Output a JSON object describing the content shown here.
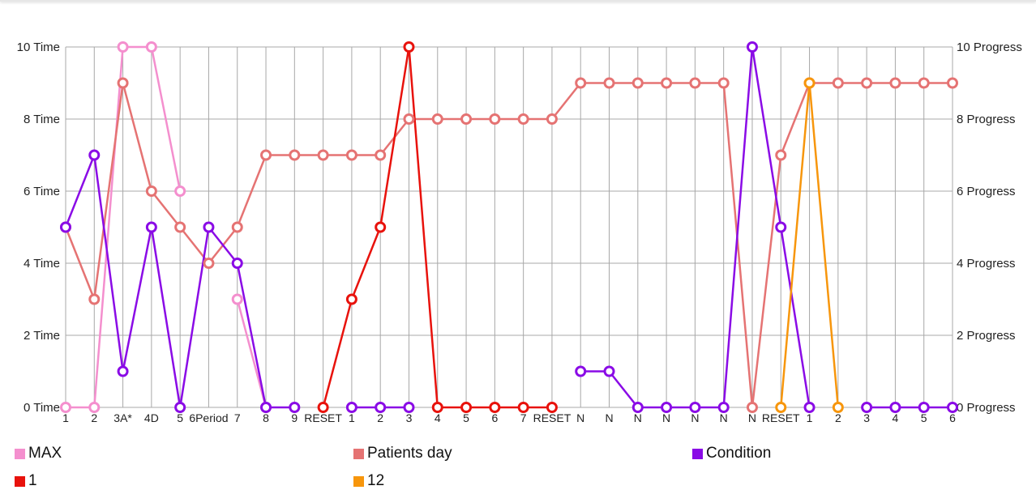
{
  "chart_data": {
    "type": "line",
    "title": "",
    "categories": [
      "1",
      "2",
      "3A*",
      "4D",
      "5",
      "6Period",
      "7",
      "8",
      "9",
      "RESET",
      "1",
      "2",
      "3",
      "4",
      "5",
      "6",
      "7",
      "RESET",
      "N",
      "N",
      "N",
      "N",
      "N",
      "N",
      "N",
      "RESET",
      "1",
      "2",
      "3",
      "4",
      "5",
      "6"
    ],
    "y_left": {
      "min": 0,
      "max": 10,
      "ticks": [
        "0 Time",
        "2 Time",
        "4 Time",
        "6 Time",
        "8 Time",
        "10 Time"
      ],
      "tick_values": [
        0,
        2,
        4,
        6,
        8,
        10
      ]
    },
    "y_right": {
      "min": 0,
      "max": 10,
      "ticks": [
        "0 Progress",
        "2 Progress",
        "4 Progress",
        "6 Progress",
        "8 Progress",
        "10 Progress"
      ],
      "tick_values": [
        0,
        2,
        4,
        6,
        8,
        10
      ]
    },
    "grid": true,
    "legend_position": "bottom",
    "series": [
      {
        "name": "MAX",
        "color": "#f48fce",
        "values": [
          0,
          0,
          10,
          10,
          6,
          null,
          3,
          0,
          null,
          null,
          null,
          null,
          null,
          null,
          null,
          null,
          null,
          null,
          null,
          null,
          null,
          null,
          null,
          null,
          null,
          null,
          null,
          null,
          null,
          null,
          null,
          null
        ]
      },
      {
        "name": "Patients day",
        "color": "#e57373",
        "values": [
          5,
          3,
          9,
          6,
          5,
          4,
          5,
          7,
          7,
          7,
          7,
          7,
          8,
          8,
          8,
          8,
          8,
          8,
          9,
          9,
          9,
          9,
          9,
          9,
          0,
          7,
          9,
          9,
          9,
          9,
          9,
          9
        ]
      },
      {
        "name": "Condition",
        "color": "#8a0be6",
        "values": [
          5,
          7,
          1,
          5,
          0,
          5,
          4,
          0,
          0,
          null,
          0,
          0,
          0,
          null,
          null,
          null,
          null,
          null,
          1,
          1,
          0,
          0,
          0,
          0,
          10,
          5,
          0,
          null,
          0,
          0,
          0,
          0
        ]
      },
      {
        "name": "1",
        "color": "#e8120c",
        "values": [
          null,
          null,
          null,
          null,
          null,
          null,
          null,
          null,
          null,
          0,
          3,
          5,
          10,
          0,
          0,
          0,
          0,
          0,
          null,
          null,
          null,
          null,
          null,
          null,
          null,
          null,
          null,
          null,
          null,
          null,
          null,
          null
        ]
      },
      {
        "name": "12",
        "color": "#f7960c",
        "values": [
          null,
          null,
          null,
          null,
          null,
          null,
          null,
          null,
          null,
          null,
          null,
          null,
          null,
          null,
          null,
          null,
          null,
          null,
          null,
          null,
          null,
          null,
          null,
          null,
          null,
          0,
          9,
          0,
          null,
          null,
          null,
          null
        ]
      }
    ]
  }
}
